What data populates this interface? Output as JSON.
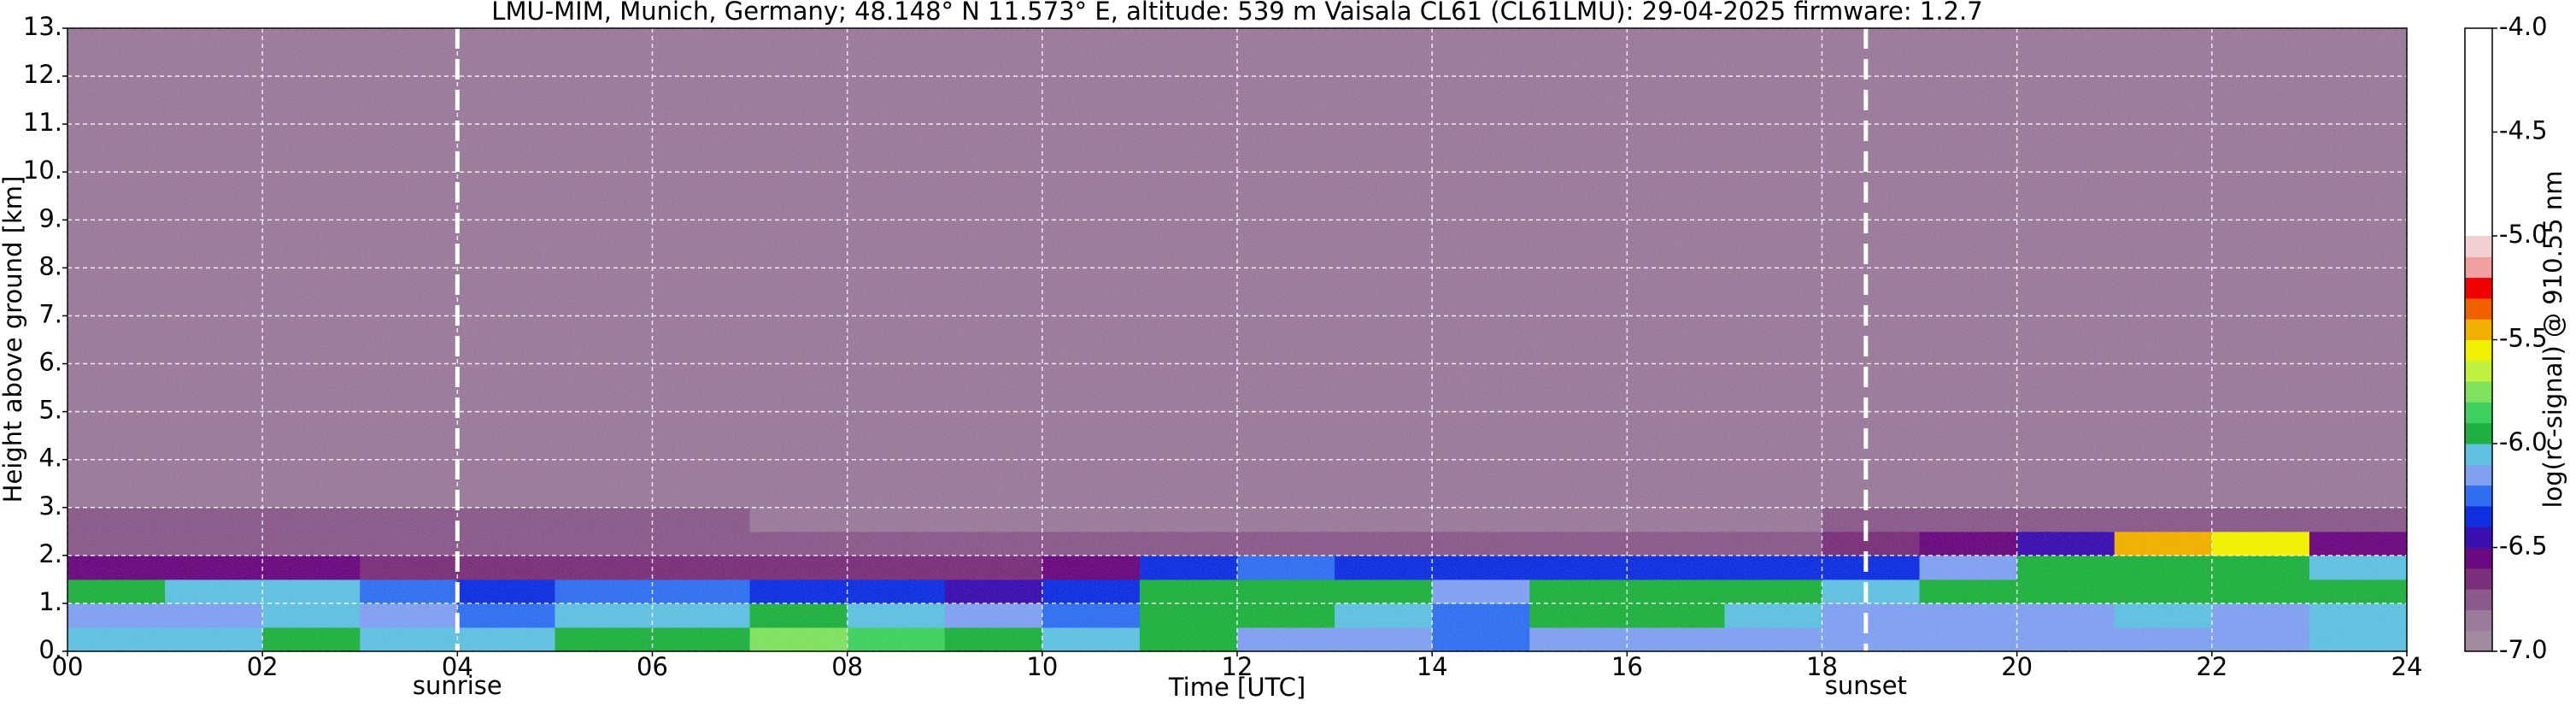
{
  "chart_data": {
    "type": "heatmap",
    "title": "LMU-MIM, Munich, Germany; 48.148° N 11.573° E, altitude: 539 m    Vaisala CL61 (CL61LMU): 29-04-2025    firmware: 1.2.7",
    "x_label": "Time [UTC]",
    "y_label": "Height above ground [km]",
    "colorbar_label": "log(rc-signal) @ 910.55 nm",
    "x": [
      0,
      1,
      2,
      3,
      4,
      5,
      6,
      7,
      8,
      9,
      10,
      11,
      12,
      13,
      14,
      15,
      16,
      17,
      18,
      19,
      20,
      21,
      22,
      23,
      24
    ],
    "y": [
      0,
      0.5,
      1,
      1.5,
      2,
      2.5,
      3,
      13
    ],
    "z": [
      [
        -6.1,
        -6.1,
        -6.0,
        -6.1,
        -6.1,
        -6.0,
        -6.0,
        -5.8,
        -5.9,
        -6.0,
        -6.1,
        -6.0,
        -6.2,
        -6.2,
        -6.3,
        -6.2,
        -6.2,
        -6.2,
        -6.2,
        -6.2,
        -6.2,
        -6.2,
        -6.2,
        -6.1
      ],
      [
        -6.2,
        -6.2,
        -6.1,
        -6.2,
        -6.3,
        -6.1,
        -6.1,
        -6.0,
        -6.1,
        -6.2,
        -6.3,
        -6.0,
        -6.0,
        -6.1,
        -6.3,
        -6.0,
        -6.0,
        -6.1,
        -6.2,
        -6.2,
        -6.2,
        -6.1,
        -6.2,
        -6.1
      ],
      [
        -6.0,
        -6.1,
        -6.1,
        -6.3,
        -6.4,
        -6.3,
        -6.3,
        -6.4,
        -6.4,
        -6.5,
        -6.4,
        -6.0,
        -6.0,
        -6.0,
        -6.2,
        -6.0,
        -6.0,
        -6.0,
        -6.1,
        -6.0,
        -6.0,
        -6.0,
        -6.0,
        -6.0
      ],
      [
        -6.6,
        -6.6,
        -6.6,
        -6.7,
        -6.7,
        -6.7,
        -6.7,
        -6.7,
        -6.7,
        -6.7,
        -6.6,
        -6.4,
        -6.3,
        -6.4,
        -6.4,
        -6.4,
        -6.4,
        -6.4,
        -6.4,
        -6.2,
        -6.0,
        -6.0,
        -6.0,
        -6.1
      ],
      [
        -6.8,
        -6.8,
        -6.8,
        -6.8,
        -6.8,
        -6.8,
        -6.8,
        -6.8,
        -6.8,
        -6.8,
        -6.8,
        -6.8,
        -6.8,
        -6.8,
        -6.8,
        -6.8,
        -6.8,
        -6.8,
        -6.7,
        -6.6,
        -6.5,
        -5.5,
        -5.6,
        -6.6
      ],
      [
        -6.8,
        -6.8,
        -6.8,
        -6.8,
        -6.8,
        -6.8,
        -6.8,
        -6.9,
        -6.9,
        -6.9,
        -6.9,
        -6.9,
        -6.9,
        -6.9,
        -6.9,
        -6.9,
        -6.9,
        -6.9,
        -6.8,
        -6.8,
        -6.8,
        -6.8,
        -6.8,
        -6.8
      ],
      [
        -6.9,
        -6.9,
        -6.9,
        -6.9,
        -6.9,
        -6.9,
        -6.9,
        -6.9,
        -6.9,
        -6.9,
        -6.9,
        -6.9,
        -6.9,
        -6.9,
        -6.9,
        -6.9,
        -6.9,
        -6.9,
        -6.9,
        -6.9,
        -6.9,
        -6.9,
        -6.9,
        -6.9
      ]
    ],
    "xlim": [
      0,
      24
    ],
    "xticks": [
      {
        "value": 0,
        "label": "00"
      },
      {
        "value": 2,
        "label": "02"
      },
      {
        "value": 4,
        "label": "04"
      },
      {
        "value": 6,
        "label": "06"
      },
      {
        "value": 8,
        "label": "08"
      },
      {
        "value": 10,
        "label": "10"
      },
      {
        "value": 12,
        "label": "12"
      },
      {
        "value": 14,
        "label": "14"
      },
      {
        "value": 16,
        "label": "16"
      },
      {
        "value": 18,
        "label": "18"
      },
      {
        "value": 20,
        "label": "20"
      },
      {
        "value": 22,
        "label": "22"
      },
      {
        "value": 24,
        "label": "24"
      }
    ],
    "ylim": [
      0,
      13
    ],
    "yticks": [
      {
        "value": 0,
        "label": "0."
      },
      {
        "value": 1,
        "label": "1."
      },
      {
        "value": 2,
        "label": "2."
      },
      {
        "value": 3,
        "label": "3."
      },
      {
        "value": 4,
        "label": "4."
      },
      {
        "value": 5,
        "label": "5."
      },
      {
        "value": 6,
        "label": "6."
      },
      {
        "value": 7,
        "label": "7."
      },
      {
        "value": 8,
        "label": "8."
      },
      {
        "value": 9,
        "label": "9."
      },
      {
        "value": 10,
        "label": "10."
      },
      {
        "value": 11,
        "label": "11."
      },
      {
        "value": 12,
        "label": "12."
      },
      {
        "value": 13,
        "label": "13."
      }
    ],
    "clim": [
      -7,
      -4
    ],
    "cticks": [
      {
        "value": -4,
        "label": "-4.0"
      },
      {
        "value": -4.5,
        "label": "-4.5"
      },
      {
        "value": -5,
        "label": "-5.0"
      },
      {
        "value": -5.5,
        "label": "-5.5"
      },
      {
        "value": -6,
        "label": "-6.0"
      },
      {
        "value": -6.5,
        "label": "-6.5"
      },
      {
        "value": -7,
        "label": "-7.0"
      }
    ],
    "color_bounds": [
      -7,
      -5
    ],
    "colors": [
      "#a08aa0",
      "#9a7a9a",
      "#8a5a8a",
      "#7a307a",
      "#6a0a80",
      "#3a10b0",
      "#1030e0",
      "#3070f0",
      "#80a0f0",
      "#60c0e0",
      "#20b040",
      "#40d060",
      "#80e060",
      "#c0f040",
      "#f0f000",
      "#f0b000",
      "#f06000",
      "#f00000",
      "#f0a0a0",
      "#f0d0d0"
    ],
    "over_color": "#ffffff",
    "grid": true,
    "annotations": [
      {
        "text": "sunrise",
        "x": 4.0
      },
      {
        "text": "sunset",
        "x": 18.45
      }
    ]
  }
}
